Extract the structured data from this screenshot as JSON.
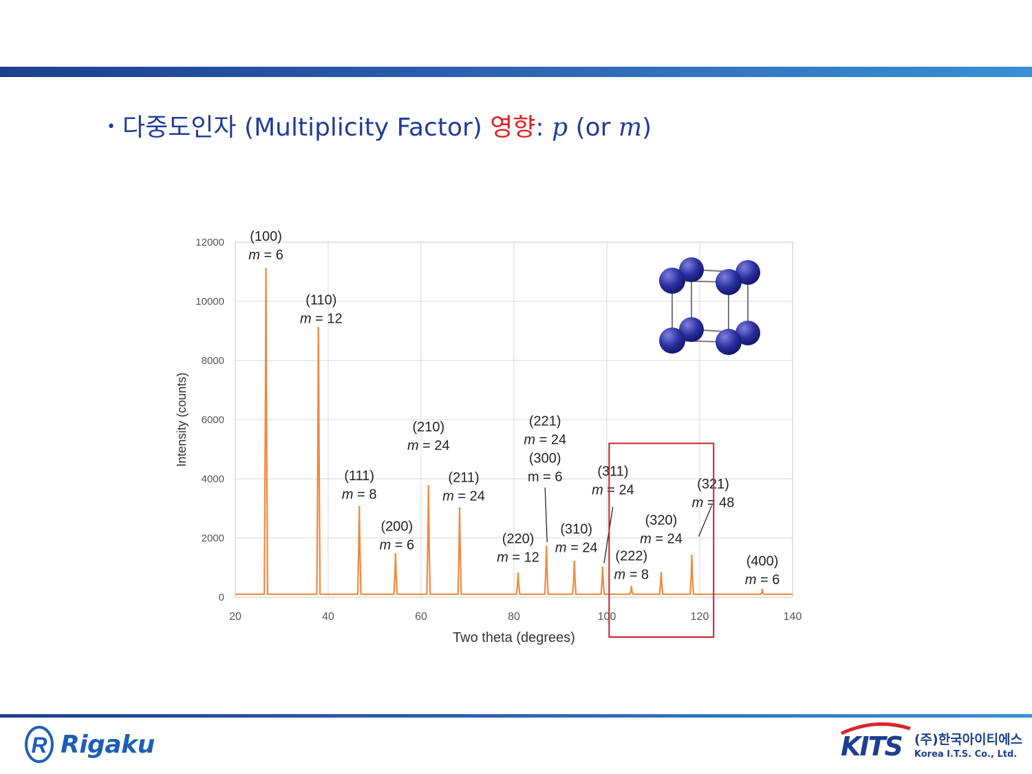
{
  "slide": {
    "bullet": "•",
    "title_part1": "다중도인자 (Multiplicity Factor)",
    "title_accent": "영향",
    "title_part2": ":",
    "math_p": "p",
    "or_text": " (or ",
    "math_m": "m",
    "close_paren": ")"
  },
  "logos": {
    "left_brand": "Rigaku",
    "left_mark": "R",
    "right_brand": "KITS",
    "right_korean": "(주)한국아이티에스",
    "right_english": "Korea I.T.S. Co., Ltd."
  },
  "chart_data": {
    "type": "line",
    "xlabel": "Two theta (degrees)",
    "ylabel": "Intensity (counts)",
    "xlim": [
      20,
      140
    ],
    "ylim": [
      0,
      12000
    ],
    "xticks": [
      20,
      40,
      60,
      80,
      100,
      120,
      140
    ],
    "yticks": [
      0,
      2000,
      4000,
      6000,
      8000,
      10000,
      12000
    ],
    "grid": true,
    "line_color": "#f0883a",
    "highlight_color": "#c0222a",
    "highlight_range": [
      100.5,
      123
    ],
    "peaks": [
      {
        "x": 26.6,
        "y": 11100,
        "hkl": "(100)",
        "m": "m = 6"
      },
      {
        "x": 37.9,
        "y": 9100,
        "hkl": "(110)",
        "m": "m = 12"
      },
      {
        "x": 46.7,
        "y": 3050,
        "hkl": "(111)",
        "m": "m = 8"
      },
      {
        "x": 54.5,
        "y": 1450,
        "hkl": "(200)",
        "m": "m = 6"
      },
      {
        "x": 61.6,
        "y": 3750,
        "hkl": "(210)",
        "m": "m = 24"
      },
      {
        "x": 68.3,
        "y": 3000,
        "hkl": "(211)",
        "m": "m = 24"
      },
      {
        "x": 80.9,
        "y": 800,
        "hkl": "(220)",
        "m": "m = 12"
      },
      {
        "x": 87.0,
        "y": 1700,
        "hkl": "(221)",
        "m": "m = 24"
      },
      {
        "x": 93.0,
        "y": 1200,
        "hkl": "(310)",
        "m": "m = 24"
      },
      {
        "x": 99.1,
        "y": 1000,
        "hkl": "(311)",
        "m": "m = 24"
      },
      {
        "x": 105.3,
        "y": 350,
        "hkl": "(222)",
        "m": "m = 8"
      },
      {
        "x": 111.7,
        "y": 820,
        "hkl": "(320)",
        "m": "m = 24"
      },
      {
        "x": 118.3,
        "y": 1400,
        "hkl": "(321)",
        "m": "m = 48"
      },
      {
        "x": 133.5,
        "y": 250,
        "hkl": "(400)",
        "m": "m = 6"
      }
    ],
    "extra_label": {
      "hkl": "(300)",
      "m": "m = 6"
    }
  }
}
